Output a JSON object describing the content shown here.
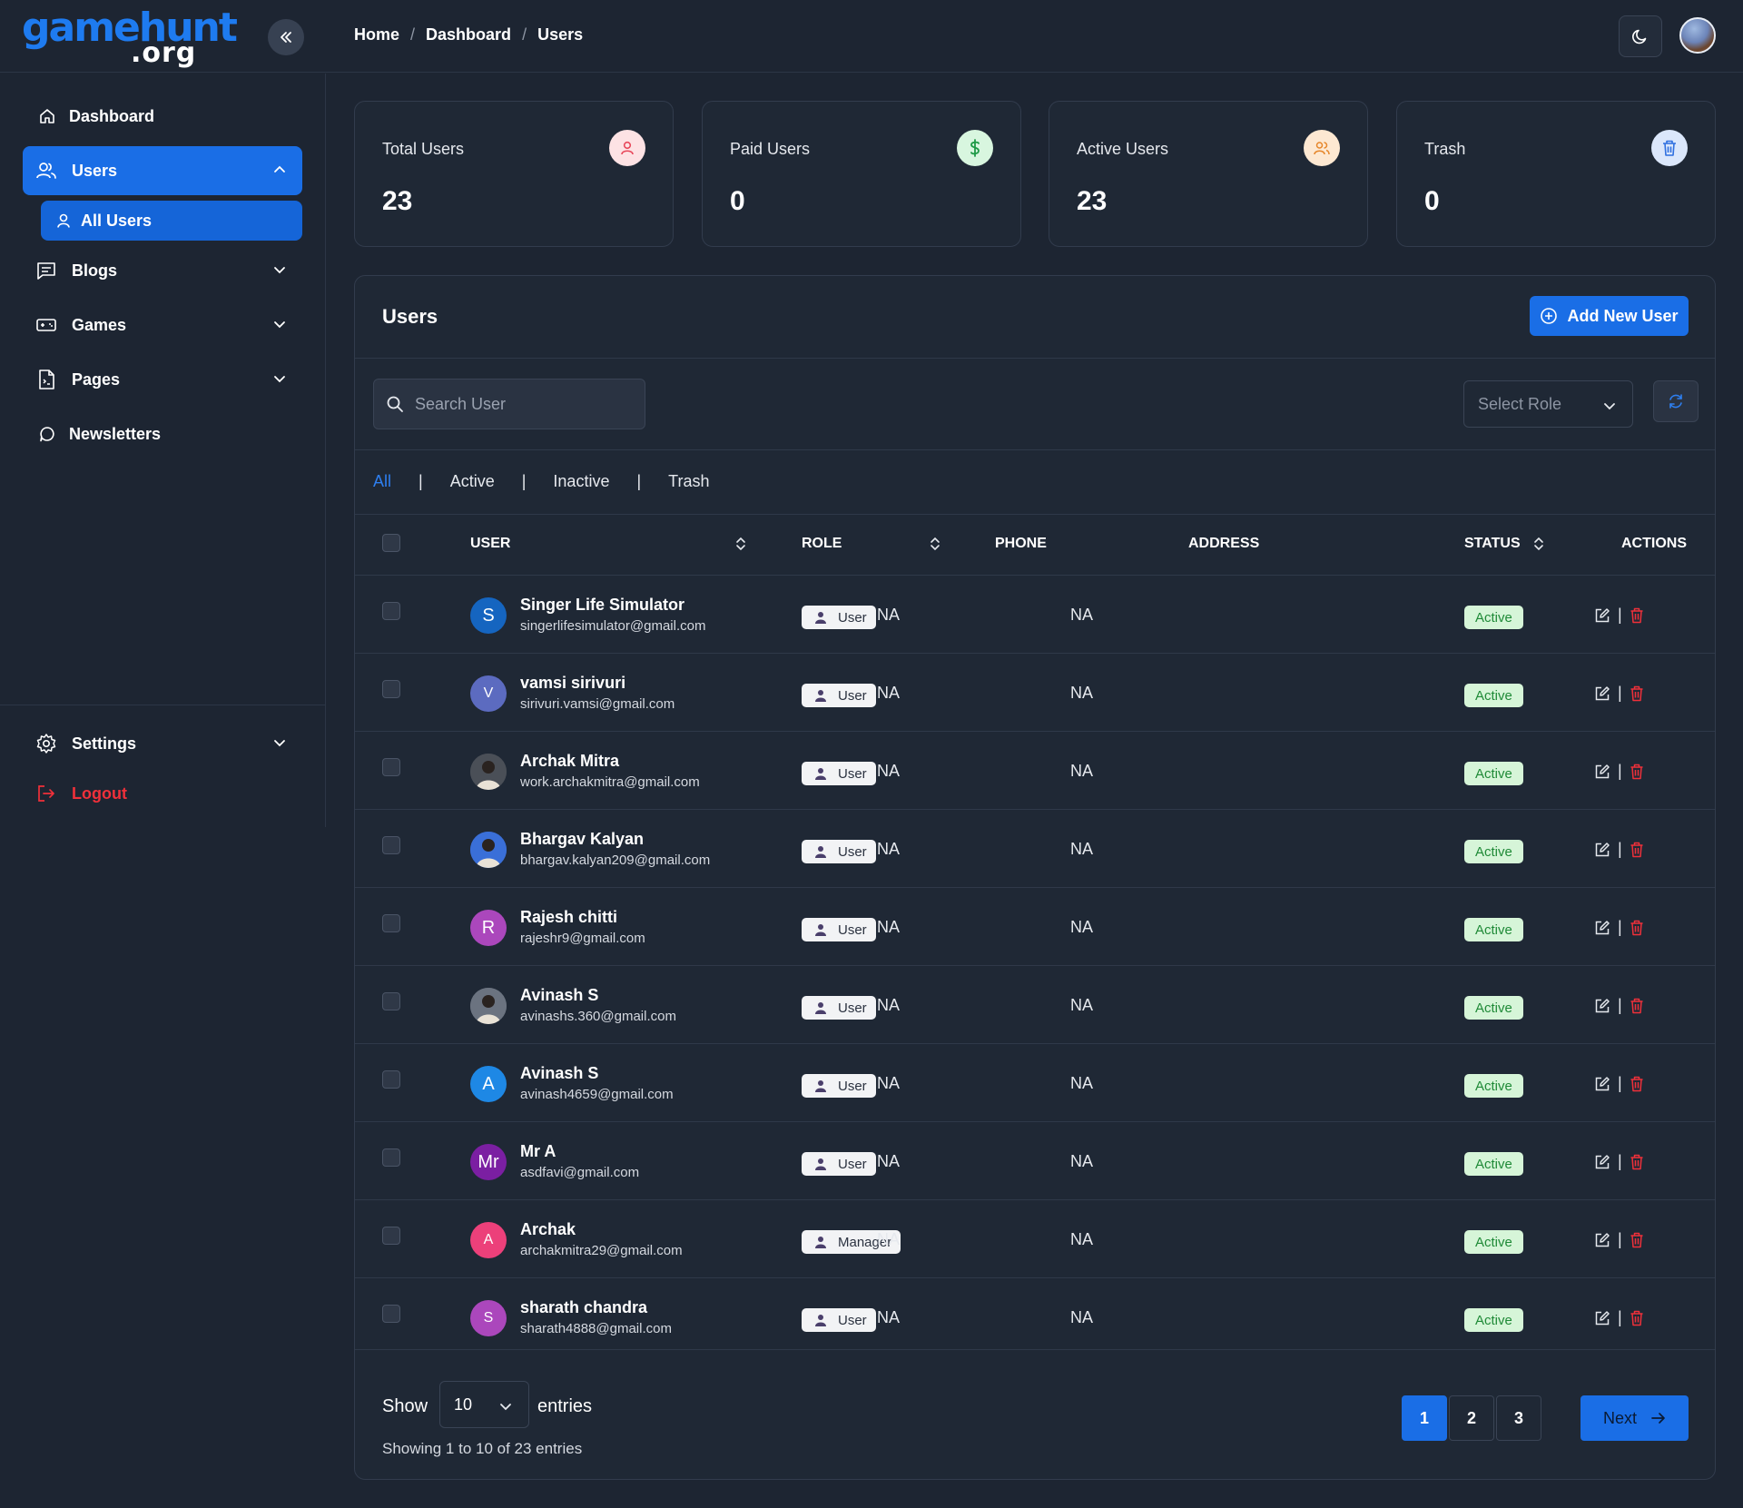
{
  "brand": {
    "logo_main": "gamehunt",
    "logo_sub": ".org"
  },
  "breadcrumb": [
    "Home",
    "Dashboard",
    "Users"
  ],
  "sidebar": {
    "items": [
      {
        "label": "Dashboard",
        "icon": "home-icon"
      },
      {
        "label": "Users",
        "icon": "users-icon",
        "expanded": true
      },
      {
        "label": "Blogs",
        "icon": "blog-icon"
      },
      {
        "label": "Games",
        "icon": "gamepad-icon"
      },
      {
        "label": "Pages",
        "icon": "file-icon"
      },
      {
        "label": "Newsletters",
        "icon": "chat-bubble-icon"
      }
    ],
    "sub_item": "All Users",
    "settings_label": "Settings",
    "logout_label": "Logout"
  },
  "stats": [
    {
      "label": "Total Users",
      "value": "23",
      "icon": "user-icon",
      "bg": "#fde2e4",
      "color": "#e8475a"
    },
    {
      "label": "Paid Users",
      "value": "0",
      "icon": "dollar-icon",
      "bg": "#d8f6df",
      "color": "#1f9a46"
    },
    {
      "label": "Active Users",
      "value": "23",
      "icon": "users-icon",
      "bg": "#fde8d2",
      "color": "#e6862a"
    },
    {
      "label": "Trash",
      "value": "0",
      "icon": "trash-icon",
      "bg": "#dbe7fb",
      "color": "#2e6fe0"
    }
  ],
  "panel": {
    "title": "Users",
    "add_button": "Add New User",
    "search_placeholder": "Search User",
    "role_placeholder": "Select Role",
    "filters": [
      "All",
      "Active",
      "Inactive",
      "Trash"
    ],
    "selected_filter": "All"
  },
  "table": {
    "headers": {
      "user": "USER",
      "role": "ROLE",
      "phone": "PHONE",
      "address": "ADDRESS",
      "status": "STATUS",
      "actions": "ACTIONS"
    },
    "rows": [
      {
        "name": "Singer Life Simulator",
        "email": "singerlifesimulator@gmail.com",
        "initial": "S",
        "avatar_color": "#1565c0",
        "role": "User",
        "phone": "NA",
        "address": "NA",
        "status": "Active"
      },
      {
        "name": "vamsi sirivuri",
        "email": "sirivuri.vamsi@gmail.com",
        "initial": "V",
        "avatar_color": "#5c6bc0",
        "role": "User",
        "phone": "NA",
        "address": "NA",
        "status": "Active"
      },
      {
        "name": "Archak Mitra",
        "email": "work.archakmitra@gmail.com",
        "initial": "",
        "avatar_color": "#4a4f57",
        "role": "User",
        "phone": "NA",
        "address": "NA",
        "status": "Active"
      },
      {
        "name": "Bhargav Kalyan",
        "email": "bhargav.kalyan209@gmail.com",
        "initial": "",
        "avatar_color": "#3a6fd8",
        "role": "User",
        "phone": "NA",
        "address": "NA",
        "status": "Active"
      },
      {
        "name": "Rajesh chitti",
        "email": "rajeshr9@gmail.com",
        "initial": "R",
        "avatar_color": "#ab47bc",
        "role": "User",
        "phone": "NA",
        "address": "NA",
        "status": "Active"
      },
      {
        "name": "Avinash S",
        "email": "avinashs.360@gmail.com",
        "initial": "",
        "avatar_color": "#6b7380",
        "role": "User",
        "phone": "NA",
        "address": "NA",
        "status": "Active"
      },
      {
        "name": "Avinash S",
        "email": "avinash4659@gmail.com",
        "initial": "A",
        "avatar_color": "#1e88e5",
        "role": "User",
        "phone": "NA",
        "address": "NA",
        "status": "Active"
      },
      {
        "name": "Mr A",
        "email": "asdfavi@gmail.com",
        "initial": "Mr",
        "avatar_color": "#7b1fa2",
        "role": "User",
        "phone": "NA",
        "address": "NA",
        "status": "Active"
      },
      {
        "name": "Archak",
        "email": "archakmitra29@gmail.com",
        "initial": "A",
        "avatar_color": "#ec407a",
        "role": "Manager",
        "phone": "NA",
        "address": "NA",
        "status": "Active"
      },
      {
        "name": "sharath chandra",
        "email": "sharath4888@gmail.com",
        "initial": "S",
        "avatar_color": "#ab47bc",
        "role": "User",
        "phone": "NA",
        "address": "NA",
        "status": "Active"
      }
    ]
  },
  "footer": {
    "show_label": "Show",
    "page_size": "10",
    "entries_label": "entries",
    "showing_text": "Showing 1 to 10 of 23 entries",
    "pages": [
      "1",
      "2",
      "3"
    ],
    "current_page": "1",
    "next_label": "Next"
  }
}
